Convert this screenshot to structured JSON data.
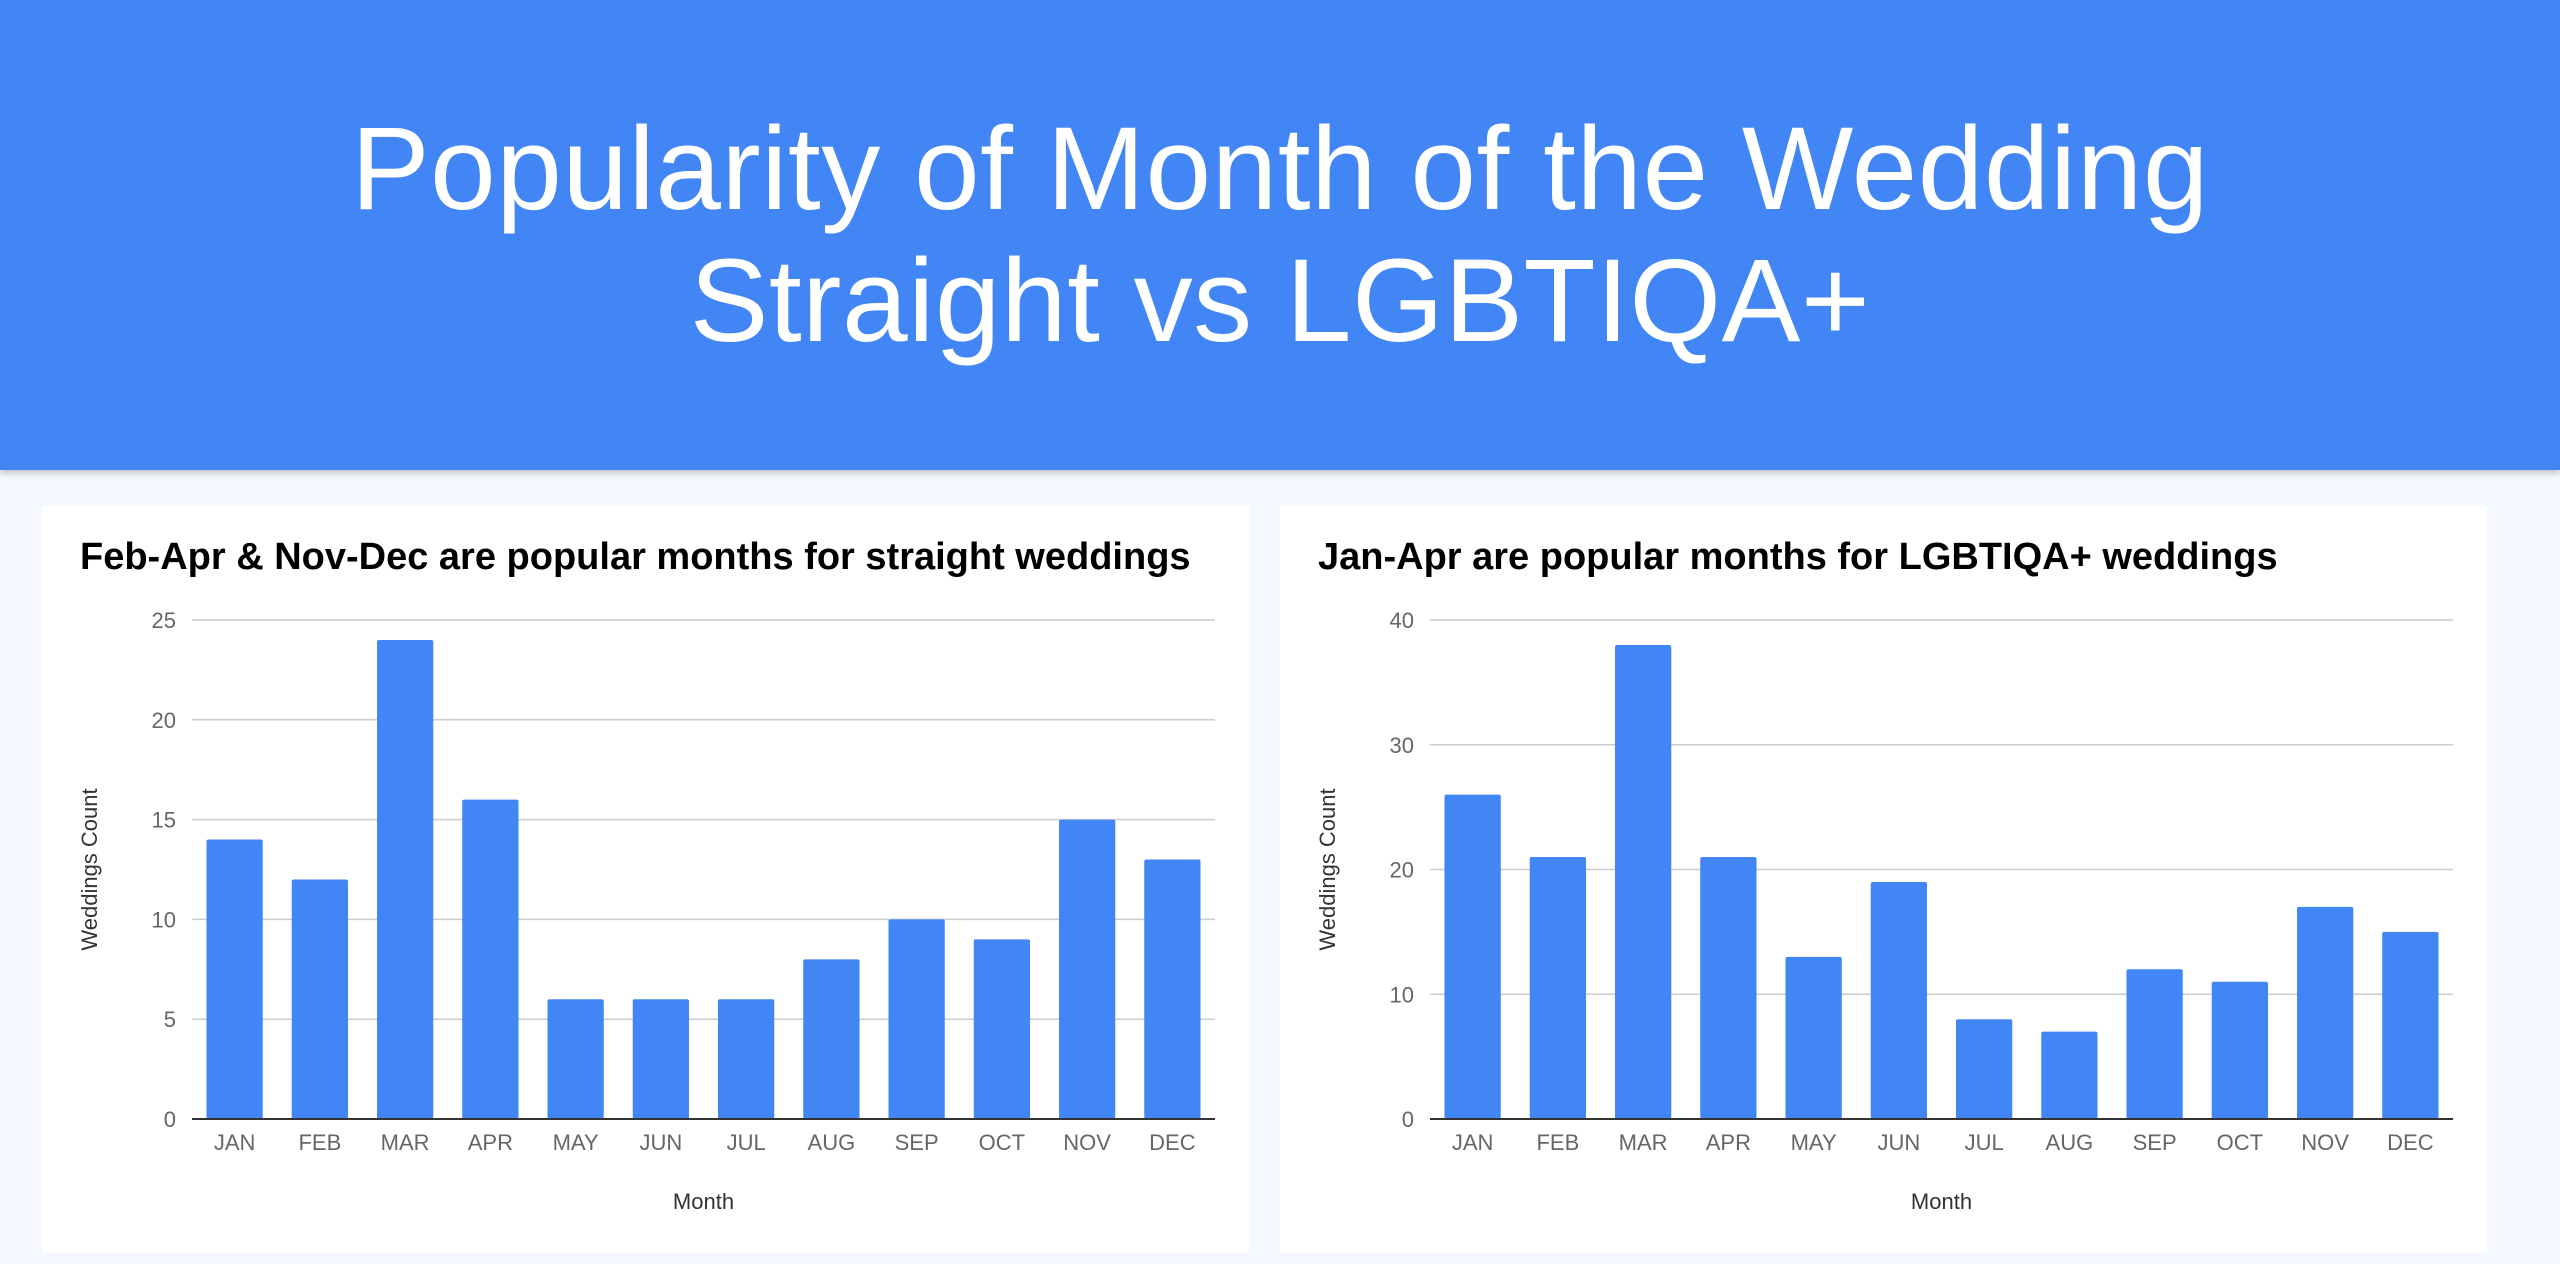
{
  "header": {
    "title_line1": "Popularity of Month of the Wedding",
    "title_line2": "Straight vs LGBTIQA+"
  },
  "colors": {
    "header_bg": "#4285f4",
    "bar": "#4285f4",
    "grid": "#cccccc",
    "axis": "#333333"
  },
  "chart_data": [
    {
      "type": "bar",
      "title": "Feb-Apr & Nov-Dec are popular months for straight weddings",
      "xlabel": "Month",
      "ylabel": "Weddings Count",
      "categories": [
        "JAN",
        "FEB",
        "MAR",
        "APR",
        "MAY",
        "JUN",
        "JUL",
        "AUG",
        "SEP",
        "OCT",
        "NOV",
        "DEC"
      ],
      "values": [
        14,
        12,
        24,
        16,
        6,
        6,
        6,
        8,
        10,
        9,
        15,
        13
      ],
      "ylim": [
        0,
        25
      ],
      "yticks": [
        0,
        5,
        10,
        15,
        20,
        25
      ],
      "grid": true,
      "legend": "none"
    },
    {
      "type": "bar",
      "title": "Jan-Apr are popular months for LGBTIQA+ weddings",
      "xlabel": "Month",
      "ylabel": "Weddings Count",
      "categories": [
        "JAN",
        "FEB",
        "MAR",
        "APR",
        "MAY",
        "JUN",
        "JUL",
        "AUG",
        "SEP",
        "OCT",
        "NOV",
        "DEC"
      ],
      "values": [
        26,
        21,
        38,
        21,
        13,
        19,
        8,
        7,
        12,
        11,
        17,
        15
      ],
      "ylim": [
        0,
        40
      ],
      "yticks": [
        0,
        10,
        20,
        30,
        40
      ],
      "grid": true,
      "legend": "none"
    }
  ]
}
